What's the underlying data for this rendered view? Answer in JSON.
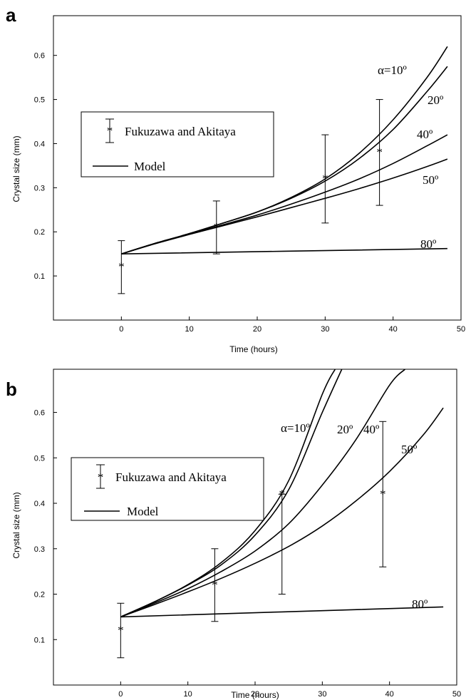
{
  "chart_data": [
    {
      "panel": "a",
      "type": "line",
      "xlabel": "Time (hours)",
      "ylabel": "Crystal size (mm)",
      "xlim": [
        -10,
        50
      ],
      "ylim": [
        0,
        0.69
      ],
      "xticks": [
        0,
        10,
        20,
        30,
        40,
        50
      ],
      "yticks": [
        0.1,
        0.2,
        0.3,
        0.4,
        0.5,
        0.6
      ],
      "xtick_labels": [
        "0",
        "10",
        "20",
        "30",
        "40",
        "50"
      ],
      "ytick_labels": [
        "0.1",
        "0.2",
        "0.3",
        "0.4",
        "0.5",
        "0.6"
      ],
      "legend": {
        "placement": "center-left",
        "entries": [
          "Fukuzawa and Akitaya",
          "Model"
        ]
      },
      "series": [
        {
          "label": "α=10º",
          "x": [
            0,
            5,
            10,
            15,
            20,
            25,
            30,
            35,
            40,
            45,
            48
          ],
          "y": [
            0.15,
            0.174,
            0.196,
            0.22,
            0.245,
            0.278,
            0.32,
            0.378,
            0.454,
            0.55,
            0.62
          ]
        },
        {
          "label": "20º",
          "x": [
            0,
            5,
            10,
            15,
            20,
            25,
            30,
            35,
            40,
            45,
            48
          ],
          "y": [
            0.15,
            0.174,
            0.196,
            0.22,
            0.245,
            0.276,
            0.315,
            0.366,
            0.432,
            0.518,
            0.575
          ]
        },
        {
          "label": "40º",
          "x": [
            0,
            5,
            10,
            15,
            20,
            25,
            30,
            35,
            40,
            45,
            48
          ],
          "y": [
            0.15,
            0.174,
            0.195,
            0.216,
            0.238,
            0.263,
            0.29,
            0.32,
            0.355,
            0.395,
            0.42
          ]
        },
        {
          "label": "50º",
          "x": [
            0,
            5,
            10,
            15,
            20,
            25,
            30,
            35,
            40,
            45,
            48
          ],
          "y": [
            0.15,
            0.173,
            0.194,
            0.214,
            0.234,
            0.255,
            0.276,
            0.298,
            0.322,
            0.348,
            0.365
          ]
        },
        {
          "label": "80º",
          "x": [
            0,
            48
          ],
          "y": [
            0.15,
            0.162
          ]
        }
      ],
      "observations": {
        "name": "Fukuzawa and Akitaya",
        "points": [
          {
            "x": 0,
            "y": 0.12,
            "low": 0.06,
            "high": 0.18
          },
          {
            "x": 14,
            "y": 0.21,
            "low": 0.15,
            "high": 0.27
          },
          {
            "x": 30,
            "y": 0.32,
            "low": 0.22,
            "high": 0.42
          },
          {
            "x": 38,
            "y": 0.38,
            "low": 0.26,
            "high": 0.5
          }
        ]
      }
    },
    {
      "panel": "b",
      "type": "line",
      "xlabel": "Time (hours)",
      "ylabel": "Crystal size (mm)",
      "xlim": [
        -10,
        50
      ],
      "ylim": [
        0,
        0.695
      ],
      "xticks": [
        0,
        10,
        20,
        30,
        40,
        50
      ],
      "yticks": [
        0.1,
        0.2,
        0.3,
        0.4,
        0.5,
        0.6
      ],
      "xtick_labels": [
        "0",
        "10",
        "20",
        "30",
        "40",
        "50"
      ],
      "ytick_labels": [
        "0.1",
        "0.2",
        "0.3",
        "0.4",
        "0.5",
        "0.6"
      ],
      "legend": {
        "placement": "top-left",
        "entries": [
          "Fukuzawa and Akitaya",
          "Model"
        ]
      },
      "series": [
        {
          "label": "α=10º",
          "x": [
            0,
            5,
            10,
            15,
            20,
            25,
            30,
            31.9
          ],
          "y": [
            0.15,
            0.183,
            0.221,
            0.27,
            0.34,
            0.45,
            0.64,
            0.695
          ]
        },
        {
          "label": "20º",
          "x": [
            0,
            5,
            10,
            15,
            20,
            25,
            30,
            32.9
          ],
          "y": [
            0.15,
            0.183,
            0.22,
            0.265,
            0.33,
            0.43,
            0.6,
            0.695
          ]
        },
        {
          "label": "40º",
          "x": [
            0,
            5,
            10,
            15,
            20,
            25,
            30,
            35,
            40,
            42.3
          ],
          "y": [
            0.15,
            0.18,
            0.212,
            0.25,
            0.295,
            0.355,
            0.44,
            0.54,
            0.66,
            0.695
          ]
        },
        {
          "label": "50º",
          "x": [
            0,
            5,
            10,
            15,
            20,
            25,
            30,
            35,
            40,
            45,
            48
          ],
          "y": [
            0.15,
            0.177,
            0.205,
            0.235,
            0.268,
            0.305,
            0.35,
            0.405,
            0.47,
            0.55,
            0.61
          ]
        },
        {
          "label": "80º",
          "x": [
            0,
            48
          ],
          "y": [
            0.15,
            0.172
          ]
        }
      ],
      "observations": {
        "name": "Fukuzawa and Akitaya",
        "points": [
          {
            "x": 0,
            "y": 0.12,
            "low": 0.06,
            "high": 0.18
          },
          {
            "x": 14,
            "y": 0.22,
            "low": 0.14,
            "high": 0.3
          },
          {
            "x": 24,
            "y": 0.42,
            "low": 0.2,
            "high": 0.42
          },
          {
            "x": 39,
            "y": 0.42,
            "low": 0.26,
            "high": 0.58
          }
        ]
      }
    }
  ]
}
